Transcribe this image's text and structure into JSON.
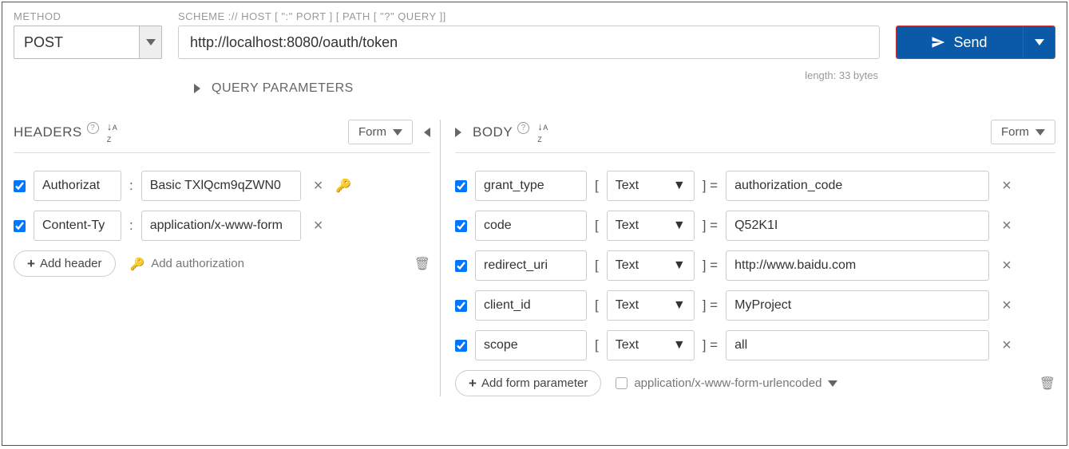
{
  "labels": {
    "method": "METHOD",
    "scheme": "SCHEME :// HOST [ \":\" PORT ] [ PATH [ \"?\" QUERY ]]",
    "length": "length: 33 bytes",
    "query_params": "QUERY PARAMETERS",
    "headers": "HEADERS",
    "body": "BODY",
    "form": "Form",
    "add_header": "Add header",
    "add_auth": "Add authorization",
    "add_form_param": "Add form parameter"
  },
  "request": {
    "method": "POST",
    "url": "http://localhost:8080/oauth/token"
  },
  "send": {
    "label": "Send"
  },
  "headers": [
    {
      "enabled": true,
      "name": "Authorizat",
      "value": "Basic TXlQcm9qZWN0",
      "has_key_icon": true
    },
    {
      "enabled": true,
      "name": "Content-Ty",
      "value": "application/x-www-form",
      "has_key_icon": false
    }
  ],
  "body": {
    "params": [
      {
        "enabled": true,
        "name": "grant_type",
        "type": "Text",
        "value": "authorization_code"
      },
      {
        "enabled": true,
        "name": "code",
        "type": "Text",
        "value": "Q52K1I"
      },
      {
        "enabled": true,
        "name": "redirect_uri",
        "type": "Text",
        "value": "http://www.baidu.com"
      },
      {
        "enabled": true,
        "name": "client_id",
        "type": "Text",
        "value": "MyProject"
      },
      {
        "enabled": true,
        "name": "scope",
        "type": "Text",
        "value": "all"
      }
    ],
    "content_type": "application/x-www-form-urlencoded"
  },
  "icons": {
    "help": "?",
    "sort": "↓A Z",
    "close": "×",
    "key": "🔑",
    "trash": "🗑",
    "plus": "+"
  }
}
